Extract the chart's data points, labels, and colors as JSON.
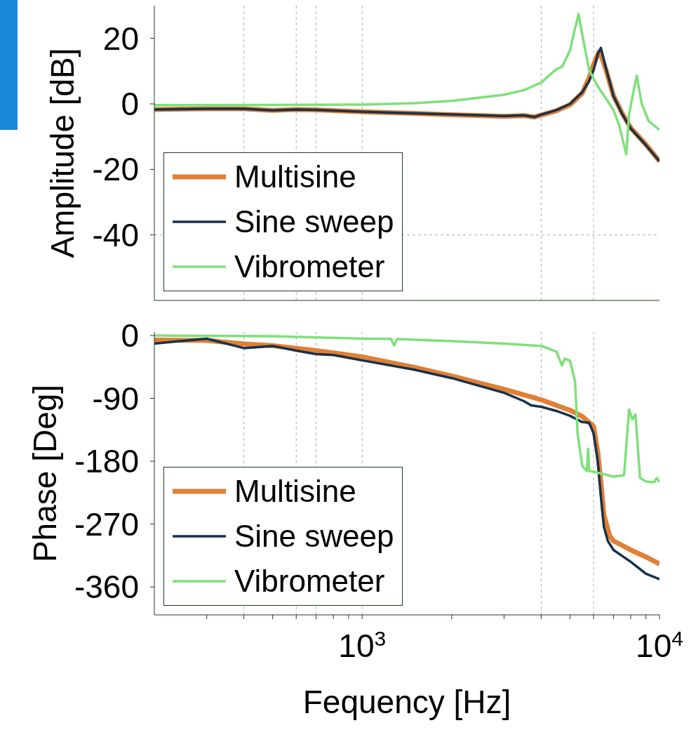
{
  "chart_data": [
    {
      "type": "line",
      "ylabel": "Amplitude [dB]",
      "log": "x",
      "xlim": [
        200,
        10000
      ],
      "ylim": [
        -60,
        30
      ],
      "yticks": [
        -40,
        -20,
        0,
        20
      ],
      "tick_labels": "y",
      "grid": false,
      "legend": "bottom left",
      "ref_lines": [
        {
          "axis": "x",
          "value": 400,
          "color": "#a8b0a8",
          "line_style": "dashed"
        },
        {
          "axis": "x",
          "value": 600,
          "color": "#a8b0a8",
          "line_style": "dashed"
        },
        {
          "axis": "x",
          "value": 700,
          "color": "#a8b0a8",
          "line_style": "dashed"
        },
        {
          "axis": "x",
          "value": 1000,
          "color": "#a8b0a8",
          "line_style": "dashed"
        },
        {
          "axis": "x",
          "value": 4000,
          "color": "#a8b0a8",
          "line_style": "dashed"
        },
        {
          "axis": "x",
          "value": 6000,
          "color": "#a8b0a8",
          "line_style": "dashed"
        },
        {
          "axis": "y",
          "value": -40,
          "color": "#a8b0a8",
          "line_style": "dashed"
        }
      ],
      "series": [
        {
          "name": "Multisine",
          "color": "#e07f35",
          "x": [
            200,
            300,
            400,
            500,
            600,
            700,
            1000,
            1500,
            2000,
            3000,
            3500,
            3800,
            4000,
            4500,
            5000,
            5500,
            5800,
            6000,
            6250,
            6350,
            6600,
            7000,
            7500,
            8000,
            9000,
            10000
          ],
          "values": [
            -1.7,
            -1.5,
            -1.5,
            -2,
            -1.7,
            -1.8,
            -2.4,
            -2.9,
            -3.3,
            -3.8,
            -3.6,
            -4,
            -3.4,
            -2.1,
            -0.3,
            3.3,
            8,
            12,
            15.8,
            15,
            10.5,
            2.5,
            -3,
            -7.3,
            -12.4,
            -17.5
          ]
        },
        {
          "name": "Sine sweep",
          "color": "#16324a",
          "x": [
            200,
            300,
            400,
            500,
            600,
            700,
            1000,
            1500,
            2000,
            3000,
            3500,
            3800,
            4000,
            4500,
            5000,
            5500,
            5800,
            6000,
            6200,
            6350,
            6600,
            7000,
            7500,
            8000,
            9000,
            10000
          ],
          "values": [
            -1.7,
            -1.5,
            -1.5,
            -2,
            -1.7,
            -1.8,
            -2.4,
            -2.9,
            -3.2,
            -3.7,
            -3.5,
            -4,
            -3.3,
            -1.9,
            0,
            3.6,
            7,
            10.3,
            15.2,
            17.1,
            11,
            2.4,
            -3.2,
            -7.5,
            -12.6,
            -17.5
          ]
        },
        {
          "name": "Vibrometer",
          "color": "#7ee07a",
          "x": [
            200,
            500,
            1000,
            1500,
            2000,
            3000,
            3500,
            4000,
            4500,
            4700,
            5000,
            5200,
            5345,
            5500,
            5800,
            6200,
            6600,
            7000,
            7300,
            7730,
            7900,
            8200,
            8390,
            8700,
            9200,
            10000
          ],
          "values": [
            -0.4,
            -0.3,
            -0.2,
            0.2,
            0.9,
            2.8,
            4.2,
            6.5,
            10.6,
            11.3,
            16.3,
            23.1,
            27.4,
            21,
            10.3,
            5.3,
            1.7,
            -1.9,
            -6.2,
            -15.4,
            -3.2,
            4.5,
            8.6,
            0.2,
            -5.3,
            -7.9
          ]
        }
      ]
    },
    {
      "type": "line",
      "ylabel": "Phase [Deg]",
      "xlabel": "Fequency [Hz]",
      "log": "x",
      "xlim": [
        200,
        10000
      ],
      "ylim": [
        -400,
        5
      ],
      "yticks": [
        -360,
        -270,
        -180,
        -90,
        0
      ],
      "xticks": [
        {
          "value": 300,
          "label": null
        },
        {
          "value": 400,
          "label": null
        },
        {
          "value": 500,
          "label": null
        },
        {
          "value": 600,
          "label": null
        },
        {
          "value": 700,
          "label": null
        },
        {
          "value": 800,
          "label": null
        },
        {
          "value": 900,
          "label": null
        },
        {
          "value": 1000,
          "label": "10$^{3}$"
        },
        {
          "value": 2000,
          "label": null
        },
        {
          "value": 3000,
          "label": null
        },
        {
          "value": 4000,
          "label": null
        },
        {
          "value": 5000,
          "label": null
        },
        {
          "value": 6000,
          "label": null
        },
        {
          "value": 7000,
          "label": null
        },
        {
          "value": 8000,
          "label": null
        },
        {
          "value": 9000,
          "label": null
        },
        {
          "value": 10000,
          "label": "10$^{4}$"
        }
      ],
      "grid": false,
      "legend": "bottom left",
      "ref_lines": [
        {
          "axis": "x",
          "value": 400,
          "color": "#a8b0a8",
          "line_style": "dashed"
        },
        {
          "axis": "x",
          "value": 600,
          "color": "#a8b0a8",
          "line_style": "dashed"
        },
        {
          "axis": "x",
          "value": 700,
          "color": "#a8b0a8",
          "line_style": "dashed"
        },
        {
          "axis": "x",
          "value": 1000,
          "color": "#a8b0a8",
          "line_style": "dashed"
        },
        {
          "axis": "x",
          "value": 4000,
          "color": "#a8b0a8",
          "line_style": "dashed"
        },
        {
          "axis": "x",
          "value": 6000,
          "color": "#a8b0a8",
          "line_style": "dashed"
        }
      ],
      "series": [
        {
          "name": "Multisine",
          "color": "#e07f35",
          "x": [
            200,
            300,
            400,
            500,
            700,
            1000,
            1500,
            2000,
            3000,
            4000,
            4500,
            5000,
            5500,
            6000,
            6200,
            6350,
            6500,
            6800,
            7000,
            8000,
            9000,
            10000
          ],
          "values": [
            -6.5,
            -7,
            -12,
            -14.5,
            -21.6,
            -30.6,
            -45.7,
            -58,
            -77,
            -92,
            -100,
            -107,
            -116,
            -130,
            -167,
            -210,
            -257,
            -287,
            -294,
            -307,
            -317,
            -327
          ]
        },
        {
          "name": "Sine sweep",
          "color": "#16324a",
          "x": [
            200,
            300,
            400,
            500,
            600,
            700,
            800,
            1000,
            1500,
            2000,
            3000,
            3500,
            3700,
            4000,
            4500,
            5000,
            5500,
            5800,
            6000,
            6200,
            6350,
            6500,
            6700,
            7000,
            8000,
            9000,
            10000
          ],
          "values": [
            -11.5,
            -4.5,
            -18,
            -15,
            -21.6,
            -26.6,
            -28,
            -35.6,
            -49,
            -61,
            -82,
            -94,
            -100,
            -102,
            -108,
            -115,
            -124,
            -125,
            -140,
            -180,
            -230,
            -274,
            -294,
            -307,
            -324,
            -341,
            -349
          ]
        },
        {
          "name": "Vibrometer",
          "color": "#7ee07a",
          "x": [
            200,
            500,
            1000,
            1250,
            1280,
            1310,
            2000,
            3000,
            4000,
            4500,
            4700,
            4800,
            5000,
            5200,
            5300,
            5500,
            5700,
            5750,
            5800,
            6000,
            7000,
            7600,
            7900,
            8100,
            8300,
            8600,
            9000,
            9600,
            9800,
            10000
          ],
          "values": [
            0,
            -1,
            -4.5,
            -4.8,
            -14,
            -5,
            -8,
            -11.5,
            -15,
            -23,
            -43,
            -33,
            -36,
            -66,
            -140,
            -187,
            -194,
            -162,
            -194,
            -195,
            -202,
            -200,
            -106,
            -120,
            -113,
            -204,
            -209,
            -210,
            -204,
            -210
          ]
        }
      ]
    }
  ]
}
